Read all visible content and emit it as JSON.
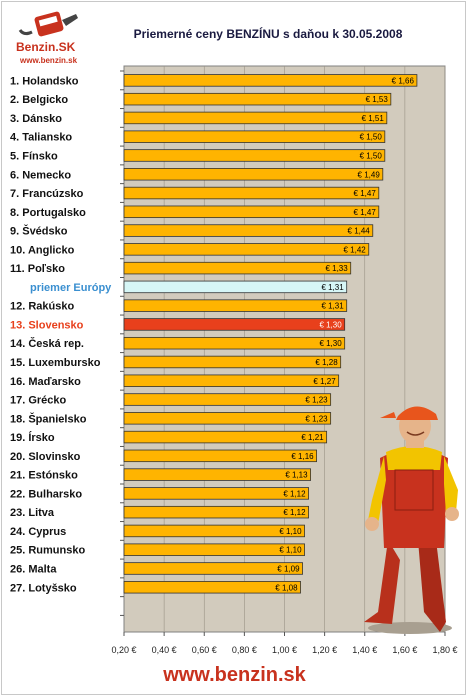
{
  "logo": {
    "brand": "Benzin.SK",
    "url": "www.benzin.sk"
  },
  "chart_data": {
    "type": "bar",
    "orientation": "horizontal",
    "title": "Priemerné ceny BENZÍNU s daňou k 30.05.2008",
    "categories": [
      "1. Holandsko",
      "2. Belgicko",
      "3. Dánsko",
      "4. Taliansko",
      "5. Fínsko",
      "6. Nemecko",
      "7. Francúzsko",
      "8. Portugalsko",
      "9. Švédsko",
      "10. Anglicko",
      "11. Poľsko",
      "priemer Európy",
      "12. Rakúsko",
      "13. Slovensko",
      "14. Česká rep.",
      "15. Luxembursko",
      "16. Maďarsko",
      "17. Grécko",
      "18. Španielsko",
      "19. Írsko",
      "20. Slovinsko",
      "21. Estónsko",
      "22. Bulharsko",
      "23. Litva",
      "24. Cyprus",
      "25. Rumunsko",
      "26. Malta",
      "27. Lotyšsko"
    ],
    "values": [
      1.66,
      1.53,
      1.51,
      1.5,
      1.5,
      1.49,
      1.47,
      1.47,
      1.44,
      1.42,
      1.33,
      1.31,
      1.31,
      1.3,
      1.3,
      1.28,
      1.27,
      1.23,
      1.23,
      1.21,
      1.16,
      1.13,
      1.12,
      1.12,
      1.1,
      1.1,
      1.09,
      1.08
    ],
    "data_labels": [
      "€ 1,66",
      "€ 1,53",
      "€ 1,51",
      "€ 1,50",
      "€ 1,50",
      "€ 1,49",
      "€ 1,47",
      "€ 1,47",
      "€ 1,44",
      "€ 1,42",
      "€ 1,33",
      "€ 1,31",
      "€ 1,31",
      "€ 1,30",
      "€ 1,30",
      "€ 1,28",
      "€ 1,27",
      "€ 1,23",
      "€ 1,23",
      "€ 1,21",
      "€ 1,16",
      "€ 1,13",
      "€ 1,12",
      "€ 1,12",
      "€ 1,10",
      "€ 1,10",
      "€ 1,09",
      "€ 1,08"
    ],
    "highlight": {
      "priemer Európy": {
        "bar": "#d6f6f6",
        "text": "#3a8fd0"
      },
      "13. Slovensko": {
        "bar": "#e8401c",
        "text": "#e8401c"
      }
    },
    "bar_color": "#ffb400",
    "plot_background": "#d2cbbd",
    "xlim": [
      0.2,
      1.8
    ],
    "xticks": [
      0.2,
      0.4,
      0.6,
      0.8,
      1.0,
      1.2,
      1.4,
      1.6,
      1.8
    ],
    "xtick_labels": [
      "0,20 €",
      "0,40 €",
      "0,60 €",
      "0,80 €",
      "1,00 €",
      "1,20 €",
      "1,40 €",
      "1,60 €",
      "1,80 €"
    ],
    "grid": "vertical",
    "xlabel": "",
    "ylabel": ""
  },
  "footer": {
    "url": "www.benzin.sk"
  }
}
